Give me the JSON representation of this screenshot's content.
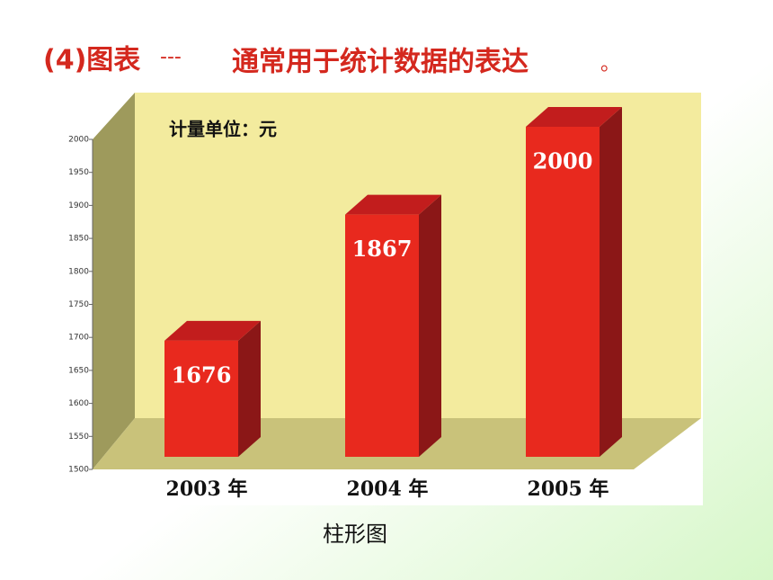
{
  "slide": {
    "heading": "(4)图表",
    "dashes": "---",
    "subheading": "通常用于统计数据的表达",
    "period": "。",
    "caption": "柱形图"
  },
  "chart_data": {
    "type": "bar3d",
    "annotation": "计量单位：元",
    "categories": [
      "2003 年",
      "2004 年",
      "2005 年"
    ],
    "values": [
      1676,
      1867,
      2000
    ],
    "color": "#e8291e",
    "ylim": [
      1500,
      2000
    ],
    "yticks": [
      1500,
      1550,
      1600,
      1650,
      1700,
      1750,
      1800,
      1850,
      1900,
      1950,
      2000
    ]
  }
}
